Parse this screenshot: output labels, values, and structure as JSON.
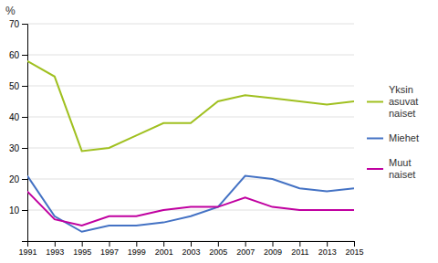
{
  "chart_data": {
    "type": "line",
    "ylabel": "%",
    "x": [
      1991,
      1993,
      1995,
      1997,
      1999,
      2001,
      2003,
      2005,
      2007,
      2009,
      2011,
      2013,
      2015
    ],
    "series": [
      {
        "name": "Yksin\nasuvat\nnaiset",
        "color": "#a0c020",
        "values": [
          58,
          53,
          29,
          30,
          34,
          38,
          38,
          45,
          47,
          46,
          45,
          44,
          45
        ]
      },
      {
        "name": "Miehet",
        "color": "#4472c4",
        "values": [
          21,
          8,
          3,
          5,
          5,
          6,
          8,
          11,
          21,
          20,
          17,
          16,
          17
        ]
      },
      {
        "name": "Muut\nnaiset",
        "color": "#c000a0",
        "values": [
          16,
          7,
          5,
          8,
          8,
          10,
          11,
          11,
          14,
          11,
          10,
          10,
          10
        ]
      }
    ],
    "xlim": [
      1991,
      2015
    ],
    "xticks": [
      1991,
      1993,
      1995,
      1997,
      1999,
      2001,
      2003,
      2005,
      2007,
      2009,
      2011,
      2013,
      2015
    ],
    "ylim": [
      0,
      70
    ],
    "yticks": [
      {
        "value": 0,
        "label": null
      },
      10,
      20,
      30,
      40,
      50,
      60,
      70
    ],
    "grid": true,
    "legend": "right"
  }
}
